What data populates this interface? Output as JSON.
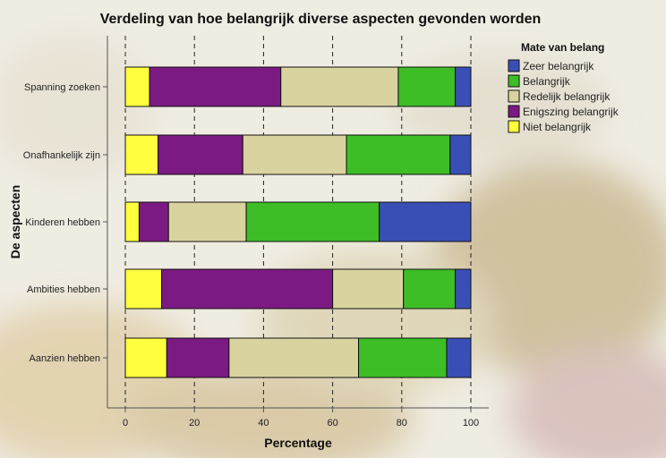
{
  "chart_data": {
    "type": "bar",
    "orientation": "horizontal",
    "stacked": true,
    "title": "Verdeling van hoe belangrijk diverse aspecten gevonden worden",
    "xlabel": "Percentage",
    "ylabel": "De aspecten",
    "xlim": [
      0,
      100
    ],
    "xticks": [
      0,
      20,
      40,
      60,
      80,
      100
    ],
    "grid": "vertical dashed",
    "legend_position": "top-right",
    "legend_title": "Mate van belang",
    "categories": [
      "Spanning zoeken",
      "Onafhankelijk zijn",
      "Kinderen hebben",
      "Ambities hebben",
      "Aanzien hebben"
    ],
    "series": [
      {
        "name": "Niet belangrijk",
        "color": "#ffff40",
        "values": [
          7,
          9.5,
          4,
          10.5,
          12
        ]
      },
      {
        "name": "Enigszing belangrijk",
        "color": "#7b1a82",
        "values": [
          38,
          24.5,
          8.5,
          49.5,
          18
        ]
      },
      {
        "name": "Redelijk belangrijk",
        "color": "#d9d3a0",
        "values": [
          34,
          30,
          22.5,
          20.5,
          37.5
        ]
      },
      {
        "name": "Belangrijk",
        "color": "#3dbd26",
        "values": [
          16.5,
          30,
          38.5,
          15,
          25.5
        ]
      },
      {
        "name": "Zeer belangrijk",
        "color": "#3a4fb6",
        "values": [
          4.5,
          6,
          26.5,
          4.5,
          7
        ]
      }
    ],
    "legend_order": [
      "Zeer belangrijk",
      "Belangrijk",
      "Redelijk belangrijk",
      "Enigszing belangrijk",
      "Niet belangrijk"
    ]
  }
}
